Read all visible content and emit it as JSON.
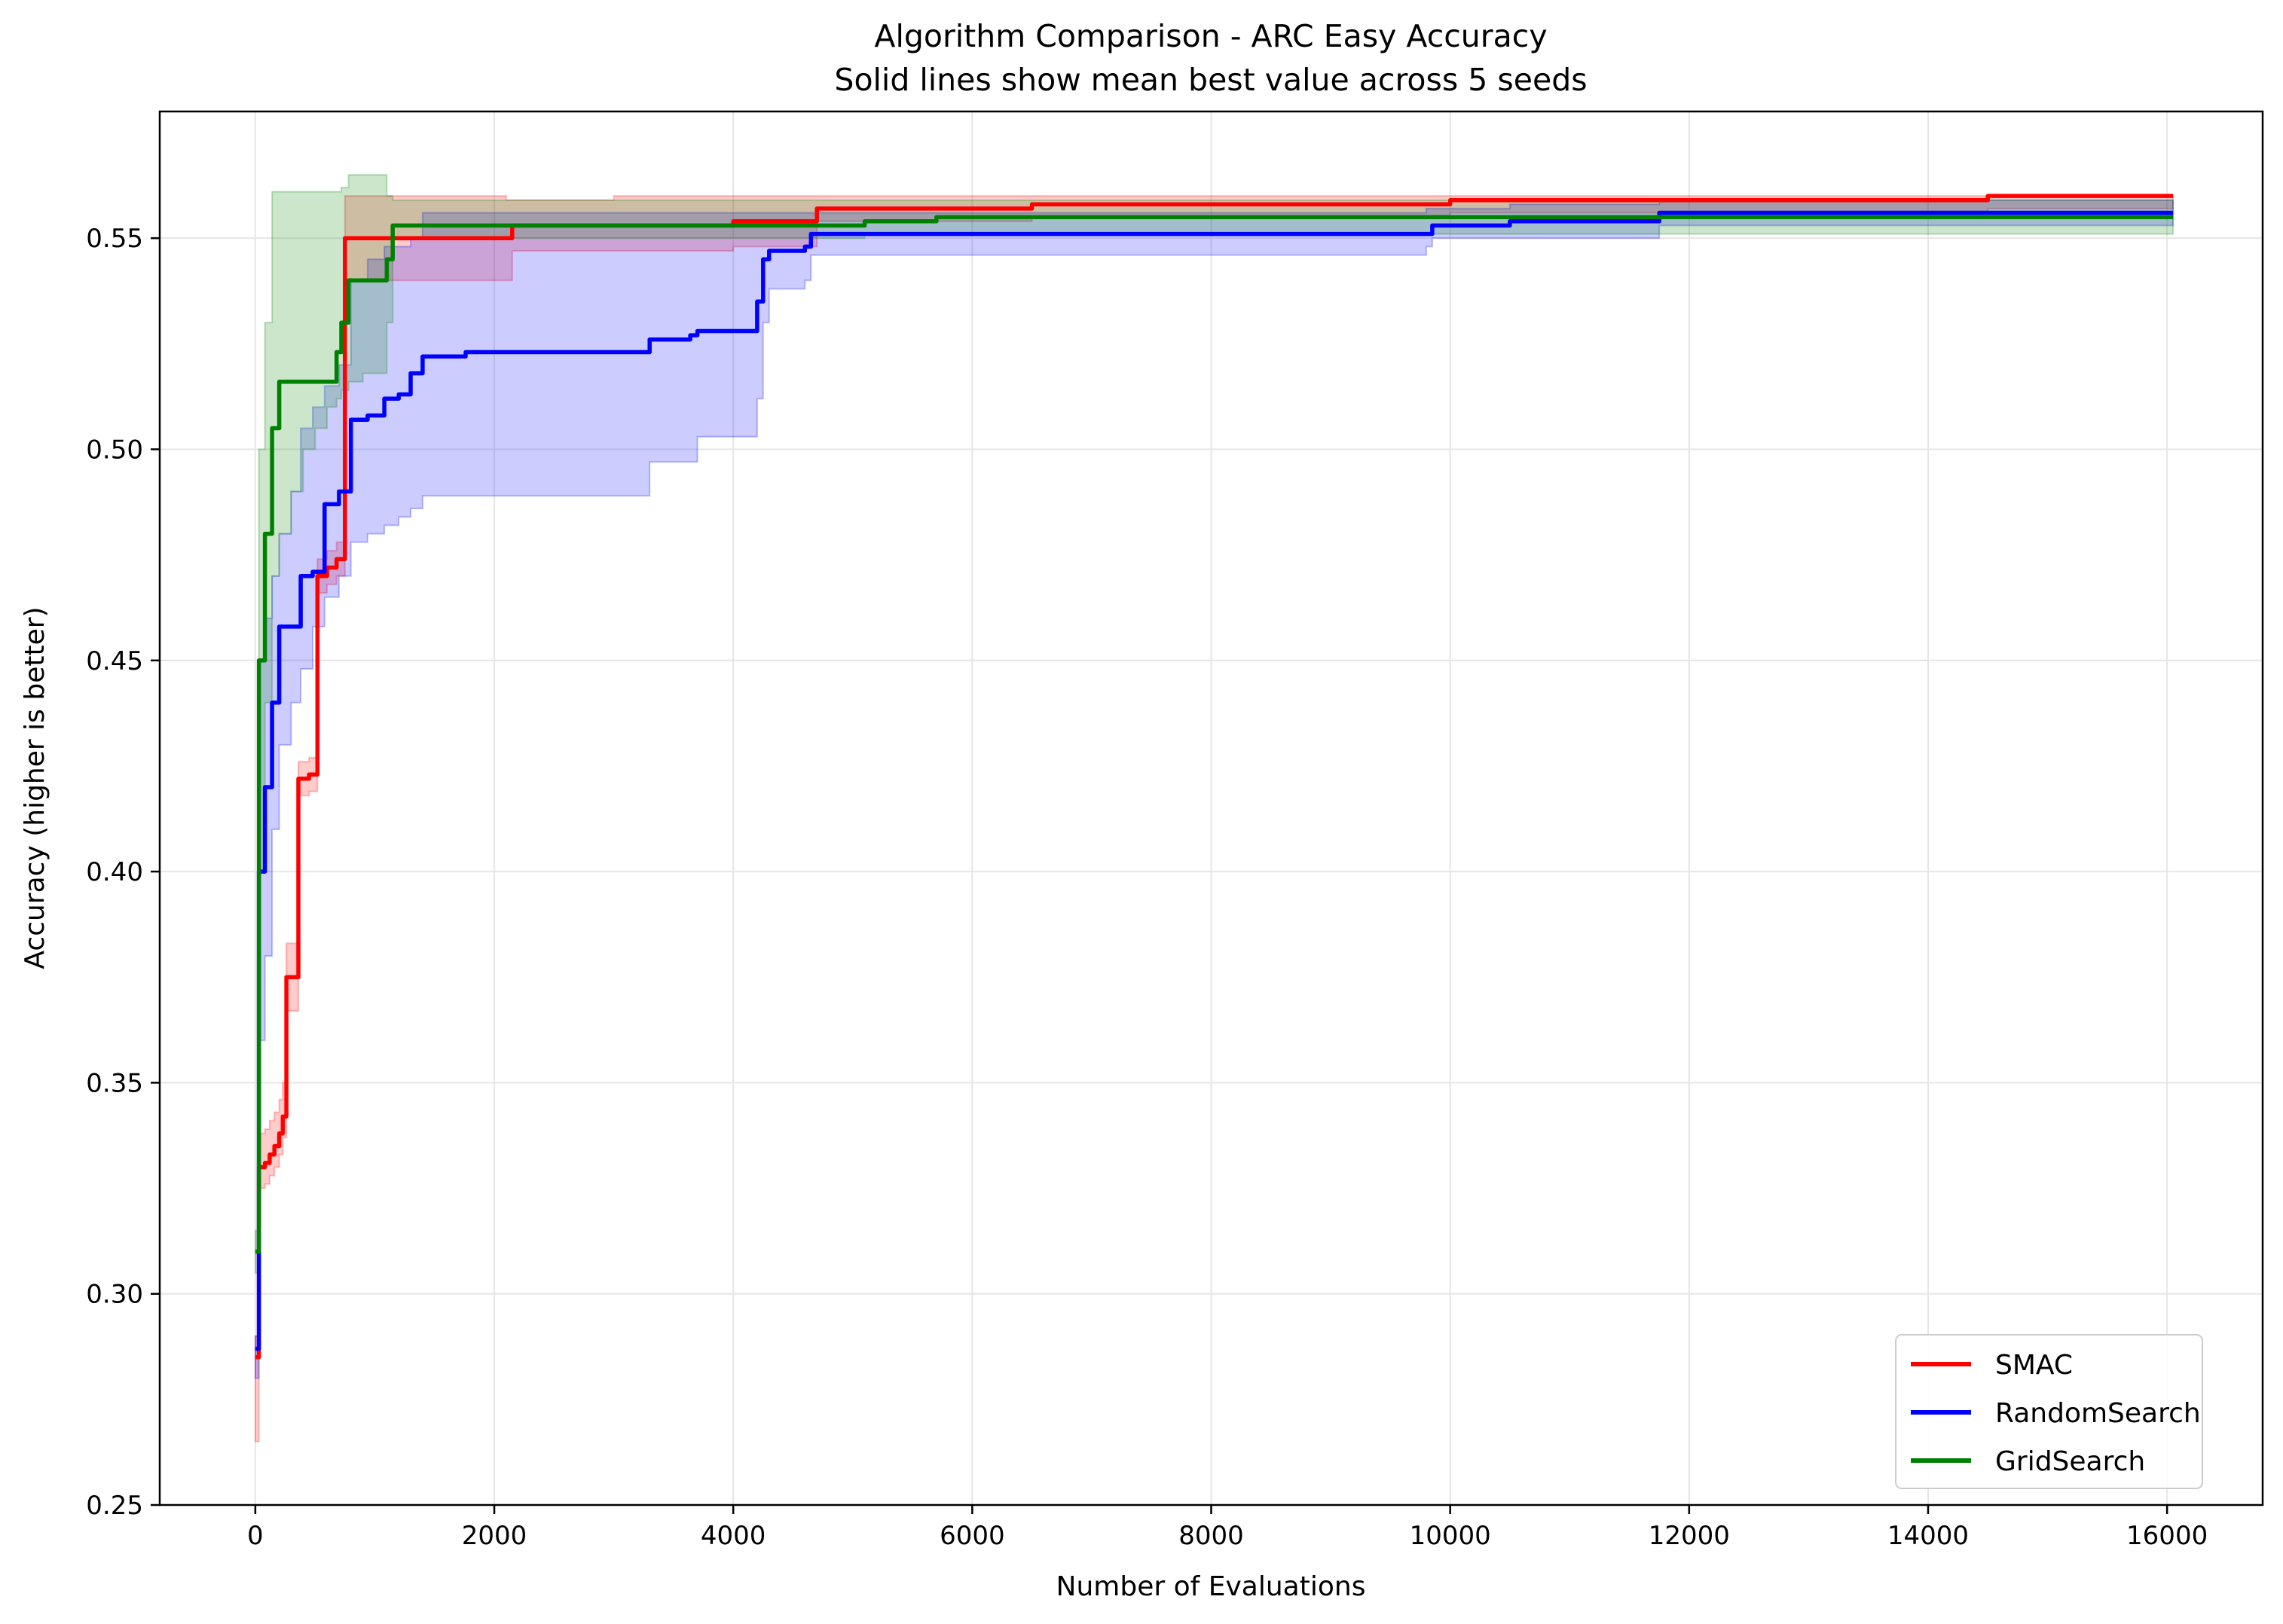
{
  "chart_data": {
    "type": "line",
    "title": "Algorithm Comparison - ARC Easy Accuracy",
    "subtitle": "Solid lines show mean best value across 5 seeds",
    "xlabel": "Number of Evaluations",
    "ylabel": "Accuracy (higher is better)",
    "xlim": [
      -800,
      16800
    ],
    "ylim": [
      0.25,
      0.58
    ],
    "xticks": [
      0,
      2000,
      4000,
      6000,
      8000,
      10000,
      12000,
      14000,
      16000
    ],
    "yticks": [
      0.25,
      0.3,
      0.35,
      0.4,
      0.45,
      0.5,
      0.55
    ],
    "ytick_labels": [
      "0.25",
      "0.30",
      "0.35",
      "0.40",
      "0.45",
      "0.50",
      "0.55"
    ],
    "grid": true,
    "legend_position": "lower-right",
    "series": [
      {
        "name": "SMAC",
        "color": "#ff0000",
        "x": [
          0,
          30,
          80,
          120,
          160,
          200,
          230,
          260,
          360,
          450,
          520,
          600,
          680,
          750,
          1000,
          1500,
          2100,
          2150,
          3000,
          4000,
          4650,
          4700,
          5000,
          5500,
          6000,
          6500,
          6700,
          7500,
          9000,
          9900,
          10000,
          12000,
          13000,
          14000,
          14500,
          16050
        ],
        "y": [
          0.285,
          0.33,
          0.331,
          0.333,
          0.335,
          0.338,
          0.342,
          0.375,
          0.422,
          0.423,
          0.47,
          0.472,
          0.474,
          0.55,
          0.55,
          0.55,
          0.55,
          0.553,
          0.553,
          0.554,
          0.554,
          0.557,
          0.557,
          0.557,
          0.557,
          0.558,
          0.558,
          0.558,
          0.558,
          0.558,
          0.559,
          0.559,
          0.559,
          0.559,
          0.56,
          0.56
        ],
        "upper": [
          0.29,
          0.338,
          0.339,
          0.341,
          0.343,
          0.346,
          0.35,
          0.383,
          0.426,
          0.427,
          0.474,
          0.476,
          0.478,
          0.56,
          0.56,
          0.56,
          0.559,
          0.559,
          0.56,
          0.56,
          0.56,
          0.56,
          0.56,
          0.56,
          0.56,
          0.56,
          0.56,
          0.56,
          0.56,
          0.56,
          0.56,
          0.56,
          0.56,
          0.56,
          0.56,
          0.56
        ],
        "lower": [
          0.265,
          0.325,
          0.326,
          0.328,
          0.33,
          0.333,
          0.337,
          0.367,
          0.418,
          0.419,
          0.466,
          0.468,
          0.47,
          0.54,
          0.54,
          0.54,
          0.54,
          0.547,
          0.547,
          0.548,
          0.548,
          0.554,
          0.554,
          0.554,
          0.554,
          0.555,
          0.555,
          0.555,
          0.555,
          0.555,
          0.556,
          0.556,
          0.556,
          0.556,
          0.557,
          0.557
        ]
      },
      {
        "name": "RandomSearch",
        "color": "#0000ff",
        "x": [
          0,
          30,
          80,
          140,
          200,
          300,
          380,
          480,
          580,
          700,
          800,
          940,
          1080,
          1200,
          1300,
          1400,
          1760,
          3200,
          3300,
          3640,
          3700,
          4100,
          4200,
          4250,
          4300,
          4600,
          4650,
          5000,
          9800,
          9850,
          10500,
          11700,
          11750,
          16050
        ],
        "y": [
          0.287,
          0.4,
          0.42,
          0.44,
          0.458,
          0.458,
          0.47,
          0.471,
          0.487,
          0.49,
          0.507,
          0.508,
          0.512,
          0.513,
          0.518,
          0.522,
          0.523,
          0.523,
          0.526,
          0.527,
          0.528,
          0.528,
          0.535,
          0.545,
          0.547,
          0.548,
          0.551,
          0.551,
          0.551,
          0.553,
          0.554,
          0.554,
          0.556,
          0.556
        ],
        "upper": [
          0.29,
          0.45,
          0.46,
          0.47,
          0.48,
          0.49,
          0.505,
          0.51,
          0.515,
          0.52,
          0.54,
          0.545,
          0.548,
          0.548,
          0.55,
          0.556,
          0.556,
          0.556,
          0.556,
          0.556,
          0.556,
          0.556,
          0.556,
          0.556,
          0.556,
          0.556,
          0.556,
          0.556,
          0.557,
          0.557,
          0.558,
          0.558,
          0.559,
          0.559
        ],
        "lower": [
          0.28,
          0.36,
          0.38,
          0.41,
          0.43,
          0.44,
          0.448,
          0.458,
          0.465,
          0.47,
          0.478,
          0.48,
          0.482,
          0.484,
          0.486,
          0.489,
          0.489,
          0.489,
          0.497,
          0.497,
          0.503,
          0.503,
          0.512,
          0.53,
          0.538,
          0.54,
          0.546,
          0.546,
          0.548,
          0.55,
          0.55,
          0.55,
          0.553,
          0.553
        ]
      },
      {
        "name": "GridSearch",
        "color": "#008000",
        "x": [
          0,
          30,
          80,
          140,
          200,
          300,
          400,
          500,
          600,
          680,
          720,
          780,
          900,
          1050,
          1100,
          1150,
          1300,
          2700,
          2750,
          5000,
          5100,
          5600,
          5700,
          10000,
          11700,
          16050
        ],
        "y": [
          0.31,
          0.45,
          0.48,
          0.505,
          0.516,
          0.516,
          0.516,
          0.516,
          0.516,
          0.523,
          0.53,
          0.54,
          0.54,
          0.54,
          0.545,
          0.553,
          0.553,
          0.553,
          0.553,
          0.553,
          0.554,
          0.554,
          0.555,
          0.555,
          0.555,
          0.555
        ],
        "upper": [
          0.315,
          0.5,
          0.53,
          0.561,
          0.561,
          0.561,
          0.561,
          0.561,
          0.561,
          0.561,
          0.562,
          0.565,
          0.565,
          0.565,
          0.56,
          0.559,
          0.559,
          0.559,
          0.559,
          0.559,
          0.559,
          0.559,
          0.559,
          0.559,
          0.559,
          0.559
        ],
        "lower": [
          0.305,
          0.4,
          0.44,
          0.47,
          0.48,
          0.49,
          0.5,
          0.505,
          0.51,
          0.512,
          0.514,
          0.516,
          0.518,
          0.518,
          0.53,
          0.55,
          0.55,
          0.55,
          0.55,
          0.55,
          0.551,
          0.551,
          0.551,
          0.551,
          0.551,
          0.551
        ]
      }
    ]
  }
}
